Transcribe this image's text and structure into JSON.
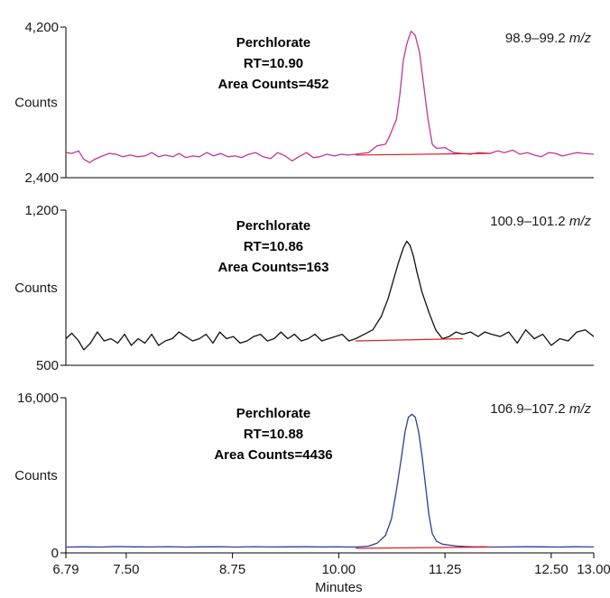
{
  "chart_data": {
    "type": "line",
    "xlabel": "Minutes",
    "x_ticks": [
      "6.79",
      "7.50",
      "8.75",
      "10.00",
      "11.25",
      "12.50",
      "13.00"
    ],
    "xlim": [
      6.79,
      13.0
    ],
    "panels": [
      {
        "mz_range": "98.9–99.2",
        "mz_unit": "m/z",
        "ylabel": "Counts",
        "ylim": [
          2400,
          4200
        ],
        "y_tick_labels": [
          "2,400",
          "4,200"
        ],
        "annotation": [
          "Perchlorate",
          "RT=10.90",
          "Area Counts=452"
        ],
        "line_color": "#c0369a",
        "baseline_color": "#e02020",
        "baseline": {
          "x": [
            10.2,
            11.78
          ],
          "y": [
            2670,
            2690
          ]
        },
        "series": {
          "x": [
            6.79,
            6.86,
            6.94,
            7.0,
            7.07,
            7.13,
            7.22,
            7.3,
            7.38,
            7.46,
            7.55,
            7.63,
            7.72,
            7.8,
            7.88,
            7.96,
            8.05,
            8.12,
            8.2,
            8.28,
            8.36,
            8.45,
            8.53,
            8.61,
            8.7,
            8.78,
            8.86,
            8.94,
            9.02,
            9.11,
            9.2,
            9.28,
            9.37,
            9.45,
            9.53,
            9.62,
            9.7,
            9.78,
            9.86,
            9.95,
            10.03,
            10.11,
            10.2,
            10.35,
            10.45,
            10.55,
            10.6,
            10.68,
            10.72,
            10.76,
            10.8,
            10.85,
            10.9,
            10.95,
            11.0,
            11.05,
            11.1,
            11.15,
            11.25,
            11.35,
            11.45,
            11.55,
            11.65,
            11.78,
            11.87,
            11.95,
            12.05,
            12.13,
            12.22,
            12.3,
            12.38,
            12.47,
            12.55,
            12.63,
            12.72,
            12.8,
            12.88,
            13.0
          ],
          "y": [
            2700,
            2690,
            2720,
            2620,
            2580,
            2620,
            2660,
            2690,
            2680,
            2650,
            2670,
            2650,
            2660,
            2700,
            2650,
            2670,
            2650,
            2690,
            2640,
            2660,
            2650,
            2700,
            2660,
            2690,
            2650,
            2660,
            2640,
            2680,
            2700,
            2650,
            2630,
            2700,
            2660,
            2600,
            2650,
            2700,
            2640,
            2650,
            2680,
            2660,
            2680,
            2670,
            2680,
            2700,
            2780,
            2800,
            2900,
            3100,
            3400,
            3800,
            4000,
            4150,
            4100,
            3900,
            3500,
            3100,
            2800,
            2750,
            2760,
            2700,
            2690,
            2680,
            2700,
            2690,
            2720,
            2700,
            2730,
            2680,
            2700,
            2670,
            2650,
            2700,
            2690,
            2660,
            2680,
            2700,
            2690,
            2680
          ]
        }
      },
      {
        "mz_range": "100.9–101.2",
        "mz_unit": "m/z",
        "ylabel": "Counts",
        "ylim": [
          500,
          1200
        ],
        "y_tick_labels": [
          "500",
          "1,200"
        ],
        "annotation": [
          "Perchlorate",
          "RT=10.86",
          "Area Counts=163"
        ],
        "line_color": "#111111",
        "baseline_color": "#e02020",
        "baseline": {
          "x": [
            10.2,
            11.46
          ],
          "y": [
            610,
            620
          ]
        },
        "series": {
          "x": [
            6.79,
            6.86,
            6.94,
            7.0,
            7.08,
            7.16,
            7.24,
            7.32,
            7.4,
            7.48,
            7.56,
            7.64,
            7.72,
            7.8,
            7.88,
            7.96,
            8.04,
            8.12,
            8.2,
            8.28,
            8.36,
            8.44,
            8.52,
            8.6,
            8.68,
            8.76,
            8.84,
            8.92,
            9.0,
            9.08,
            9.16,
            9.24,
            9.32,
            9.4,
            9.48,
            9.56,
            9.64,
            9.72,
            9.8,
            9.88,
            9.96,
            10.04,
            10.12,
            10.2,
            10.3,
            10.4,
            10.5,
            10.58,
            10.64,
            10.7,
            10.76,
            10.8,
            10.84,
            10.88,
            10.92,
            10.98,
            11.06,
            11.14,
            11.22,
            11.3,
            11.38,
            11.46,
            11.55,
            11.64,
            11.72,
            11.8,
            11.9,
            12.0,
            12.1,
            12.2,
            12.3,
            12.4,
            12.5,
            12.6,
            12.7,
            12.8,
            12.9,
            13.0
          ],
          "y": [
            620,
            645,
            610,
            570,
            600,
            650,
            610,
            620,
            600,
            640,
            590,
            620,
            600,
            640,
            590,
            610,
            620,
            650,
            630,
            610,
            620,
            640,
            600,
            650,
            620,
            630,
            600,
            610,
            630,
            640,
            610,
            620,
            650,
            620,
            640,
            610,
            620,
            640,
            610,
            620,
            630,
            640,
            610,
            620,
            640,
            660,
            720,
            800,
            880,
            960,
            1030,
            1060,
            1040,
            990,
            920,
            830,
            740,
            660,
            620,
            630,
            650,
            640,
            650,
            630,
            650,
            640,
            630,
            650,
            600,
            660,
            620,
            640,
            590,
            620,
            610,
            650,
            660,
            630
          ]
        }
      },
      {
        "mz_range": "106.9–107.2",
        "mz_unit": "m/z",
        "ylabel": "Counts",
        "ylim": [
          0,
          16000
        ],
        "y_tick_labels": [
          "0",
          "16,000"
        ],
        "annotation": [
          "Perchlorate",
          "RT=10.88",
          "Area Counts=4436"
        ],
        "line_color": "#2b3f97",
        "baseline_color": "#e02020",
        "baseline": {
          "x": [
            10.2,
            11.78
          ],
          "y": [
            480,
            600
          ]
        },
        "series": {
          "x": [
            6.79,
            7.0,
            7.2,
            7.4,
            7.6,
            7.8,
            8.0,
            8.2,
            8.4,
            8.6,
            8.8,
            9.0,
            9.2,
            9.4,
            9.6,
            9.8,
            10.0,
            10.2,
            10.35,
            10.45,
            10.55,
            10.62,
            10.68,
            10.74,
            10.78,
            10.82,
            10.86,
            10.9,
            10.94,
            10.98,
            11.02,
            11.06,
            11.1,
            11.15,
            11.22,
            11.3,
            11.4,
            11.5,
            11.6,
            11.7,
            11.8,
            12.0,
            12.2,
            12.4,
            12.6,
            12.8,
            13.0
          ],
          "y": [
            600,
            620,
            600,
            650,
            620,
            610,
            640,
            600,
            620,
            630,
            600,
            640,
            610,
            620,
            630,
            610,
            620,
            600,
            700,
            1000,
            1800,
            3500,
            6500,
            10000,
            12500,
            14000,
            14300,
            14000,
            12500,
            10000,
            7000,
            4000,
            2000,
            1200,
            900,
            800,
            700,
            650,
            620,
            640,
            600,
            610,
            630,
            620,
            600,
            640,
            610
          ]
        }
      }
    ]
  }
}
